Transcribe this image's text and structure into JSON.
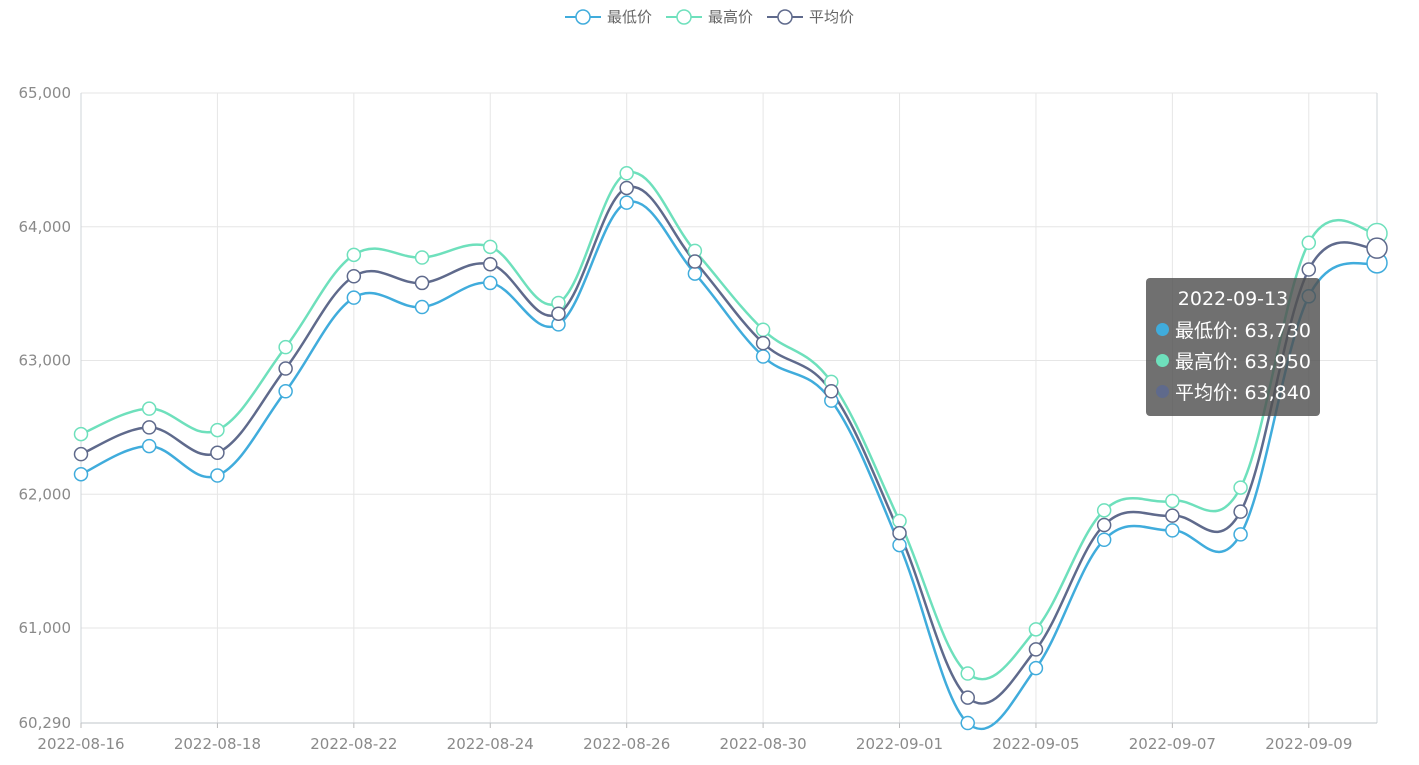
{
  "legend": [
    {
      "name": "最低价",
      "color": "#40acdc"
    },
    {
      "name": "最高价",
      "color": "#6ee0bc"
    },
    {
      "name": "平均价",
      "color": "#5f6a8c"
    }
  ],
  "tooltip": {
    "date": "2022-09-13",
    "rows": [
      {
        "label": "最低价: 63,730",
        "color": "#40acdc"
      },
      {
        "label": "最高价: 63,950",
        "color": "#6ee0bc"
      },
      {
        "label": "平均价: 63,840",
        "color": "#5f6a8c"
      }
    ]
  },
  "chart_data": {
    "type": "line",
    "smooth": true,
    "x": [
      "2022-08-16",
      "2022-08-17",
      "2022-08-18",
      "2022-08-19",
      "2022-08-22",
      "2022-08-23",
      "2022-08-24",
      "2022-08-25",
      "2022-08-26",
      "2022-08-29",
      "2022-08-30",
      "2022-08-31",
      "2022-09-01",
      "2022-09-02",
      "2022-09-05",
      "2022-09-06",
      "2022-09-07",
      "2022-09-08",
      "2022-09-09",
      "2022-09-13"
    ],
    "x_tick_labels": [
      "2022-08-16",
      "2022-08-18",
      "2022-08-22",
      "2022-08-24",
      "2022-08-26",
      "2022-08-30",
      "2022-09-01",
      "2022-09-05",
      "2022-09-07",
      "2022-09-09"
    ],
    "series": [
      {
        "name": "最低价",
        "color": "#40acdc",
        "values": [
          62150,
          62360,
          62140,
          62770,
          63470,
          63400,
          63580,
          63270,
          64180,
          63650,
          63030,
          62700,
          61620,
          60290,
          60700,
          61660,
          61730,
          61700,
          63480,
          63730
        ]
      },
      {
        "name": "最高价",
        "color": "#6ee0bc",
        "values": [
          62450,
          62640,
          62480,
          63100,
          63790,
          63770,
          63850,
          63430,
          64400,
          63820,
          63230,
          62840,
          61800,
          60660,
          60990,
          61880,
          61950,
          62050,
          63880,
          63950
        ]
      },
      {
        "name": "平均价",
        "color": "#5f6a8c",
        "values": [
          62300,
          62500,
          62310,
          62940,
          63630,
          63580,
          63720,
          63350,
          64290,
          63740,
          63130,
          62770,
          61710,
          60480,
          60840,
          61770,
          61840,
          61870,
          63680,
          63840
        ]
      }
    ],
    "ylim": [
      60290,
      65000
    ],
    "y_ticks": [
      {
        "value": 60290,
        "label": "60,290"
      },
      {
        "value": 61000,
        "label": "61,000"
      },
      {
        "value": 62000,
        "label": "62,000"
      },
      {
        "value": 63000,
        "label": "63,000"
      },
      {
        "value": 64000,
        "label": "64,000"
      },
      {
        "value": 65000,
        "label": "65,000"
      }
    ],
    "grid": true,
    "legend_position": "top-center",
    "highlighted_index": 19
  }
}
